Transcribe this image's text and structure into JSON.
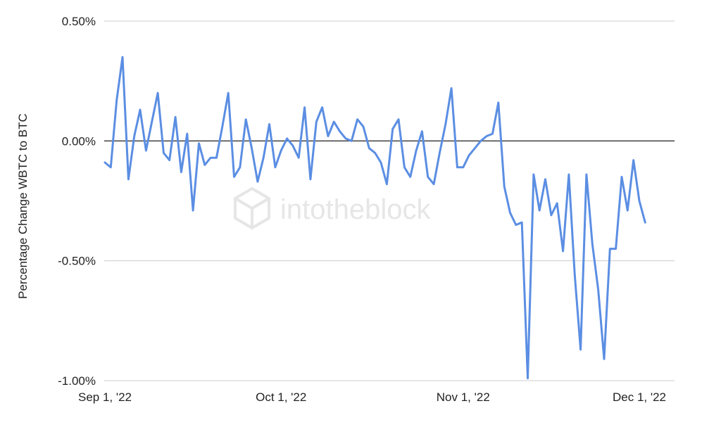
{
  "watermark": {
    "text": "intotheblock"
  },
  "chart_data": {
    "type": "line",
    "title": "",
    "xlabel": "",
    "ylabel": "Percentage Change WBTC to BTC",
    "x_start": "2022-09-01",
    "x_end": "2022-12-01",
    "ylim": [
      -1.0,
      0.5
    ],
    "y_ticks": [
      0.5,
      0.0,
      -0.5,
      -1.0
    ],
    "y_tick_labels": [
      "0.50%",
      "0.00%",
      "-0.50%",
      "-1.00%"
    ],
    "x_ticks": [
      "2022-09-01",
      "2022-10-01",
      "2022-11-01",
      "2022-12-01"
    ],
    "x_tick_labels": [
      "Sep 1,  '22",
      "Oct 1,  '22",
      "Nov 1,  '22",
      "Dec 1,  '22"
    ],
    "grid": true,
    "zero_line": true,
    "legend": "none",
    "series": [
      {
        "color": "#5b8ee3",
        "x": [
          "2022-09-01",
          "2022-09-02",
          "2022-09-03",
          "2022-09-04",
          "2022-09-05",
          "2022-09-06",
          "2022-09-07",
          "2022-09-08",
          "2022-09-09",
          "2022-09-10",
          "2022-09-11",
          "2022-09-12",
          "2022-09-13",
          "2022-09-14",
          "2022-09-15",
          "2022-09-16",
          "2022-09-17",
          "2022-09-18",
          "2022-09-19",
          "2022-09-20",
          "2022-09-21",
          "2022-09-22",
          "2022-09-23",
          "2022-09-24",
          "2022-09-25",
          "2022-09-26",
          "2022-09-27",
          "2022-09-28",
          "2022-09-29",
          "2022-09-30",
          "2022-10-01",
          "2022-10-02",
          "2022-10-03",
          "2022-10-04",
          "2022-10-05",
          "2022-10-06",
          "2022-10-07",
          "2022-10-08",
          "2022-10-09",
          "2022-10-10",
          "2022-10-11",
          "2022-10-12",
          "2022-10-13",
          "2022-10-14",
          "2022-10-15",
          "2022-10-16",
          "2022-10-17",
          "2022-10-18",
          "2022-10-19",
          "2022-10-20",
          "2022-10-21",
          "2022-10-22",
          "2022-10-23",
          "2022-10-24",
          "2022-10-25",
          "2022-10-26",
          "2022-10-27",
          "2022-10-28",
          "2022-10-29",
          "2022-10-30",
          "2022-10-31",
          "2022-11-01",
          "2022-11-02",
          "2022-11-03",
          "2022-11-04",
          "2022-11-05",
          "2022-11-06",
          "2022-11-07",
          "2022-11-08",
          "2022-11-09",
          "2022-11-10",
          "2022-11-11",
          "2022-11-12",
          "2022-11-13",
          "2022-11-14",
          "2022-11-15",
          "2022-11-16",
          "2022-11-17",
          "2022-11-18",
          "2022-11-19",
          "2022-11-20",
          "2022-11-21",
          "2022-11-22",
          "2022-11-23",
          "2022-11-24",
          "2022-11-25",
          "2022-11-26",
          "2022-11-27",
          "2022-11-28",
          "2022-11-29",
          "2022-11-30",
          "2022-12-01",
          "2022-12-02"
        ],
        "values": [
          -0.09,
          -0.11,
          0.17,
          0.35,
          -0.16,
          0.02,
          0.13,
          -0.04,
          0.08,
          0.2,
          -0.05,
          -0.08,
          0.1,
          -0.13,
          0.03,
          -0.29,
          -0.01,
          -0.1,
          -0.07,
          -0.07,
          0.06,
          0.2,
          -0.15,
          -0.11,
          0.09,
          -0.03,
          -0.17,
          -0.07,
          0.07,
          -0.11,
          -0.04,
          0.01,
          -0.02,
          -0.07,
          0.14,
          -0.16,
          0.08,
          0.14,
          0.02,
          0.08,
          0.04,
          0.01,
          0.0,
          0.09,
          0.06,
          -0.03,
          -0.05,
          -0.09,
          -0.18,
          0.05,
          0.09,
          -0.11,
          -0.15,
          -0.04,
          0.04,
          -0.15,
          -0.18,
          -0.05,
          0.07,
          0.22,
          -0.11,
          -0.11,
          -0.06,
          -0.03,
          0.0,
          0.02,
          0.03,
          0.16,
          -0.19,
          -0.3,
          -0.35,
          -0.34,
          -0.99,
          -0.14,
          -0.29,
          -0.16,
          -0.31,
          -0.26,
          -0.46,
          -0.14,
          -0.56,
          -0.87,
          -0.14,
          -0.43,
          -0.62,
          -0.91,
          -0.45,
          -0.45,
          -0.15,
          -0.29,
          -0.08,
          -0.25,
          -0.34
        ]
      }
    ]
  }
}
